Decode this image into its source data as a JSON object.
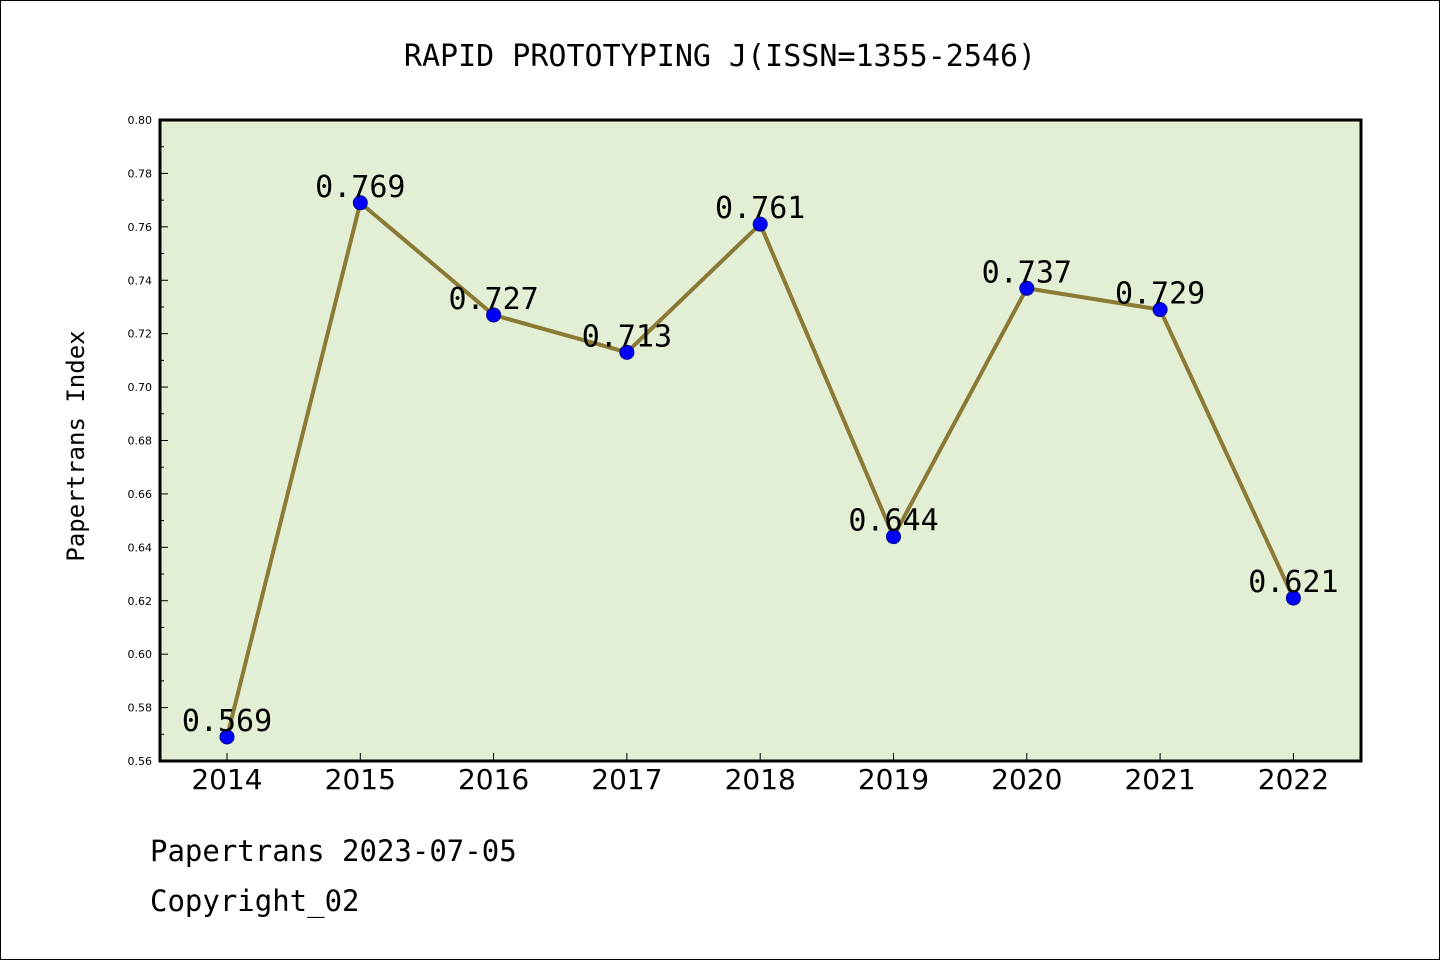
{
  "footer": {
    "line1": "Papertrans 2023-07-05",
    "line2": "Copyright_02"
  },
  "chart_data": {
    "type": "line",
    "title": "RAPID PROTOTYPING J(ISSN=1355-2546)",
    "xlabel": "",
    "ylabel": "Papertrans Index",
    "categories": [
      "2014",
      "2015",
      "2016",
      "2017",
      "2018",
      "2019",
      "2020",
      "2021",
      "2022"
    ],
    "series": [
      {
        "values": [
          0.569,
          0.769,
          0.727,
          0.713,
          0.761,
          0.644,
          0.737,
          0.729,
          0.621
        ],
        "data_labels": [
          "0.569",
          "0.769",
          "0.727",
          "0.713",
          "0.761",
          "0.644",
          "0.737",
          "0.729",
          "0.621"
        ]
      }
    ],
    "ylim": [
      0.56,
      0.8
    ],
    "yticks": [
      "0.56",
      "0.58",
      "0.60",
      "0.62",
      "0.64",
      "0.66",
      "0.68",
      "0.70",
      "0.72",
      "0.74",
      "0.76",
      "0.78",
      "0.80"
    ],
    "grid": false,
    "colors": {
      "plot_background": "#e2efd4",
      "line": "#8b7a35",
      "marker_fill": "#0000ff",
      "marker_edge": "#00008b"
    }
  }
}
